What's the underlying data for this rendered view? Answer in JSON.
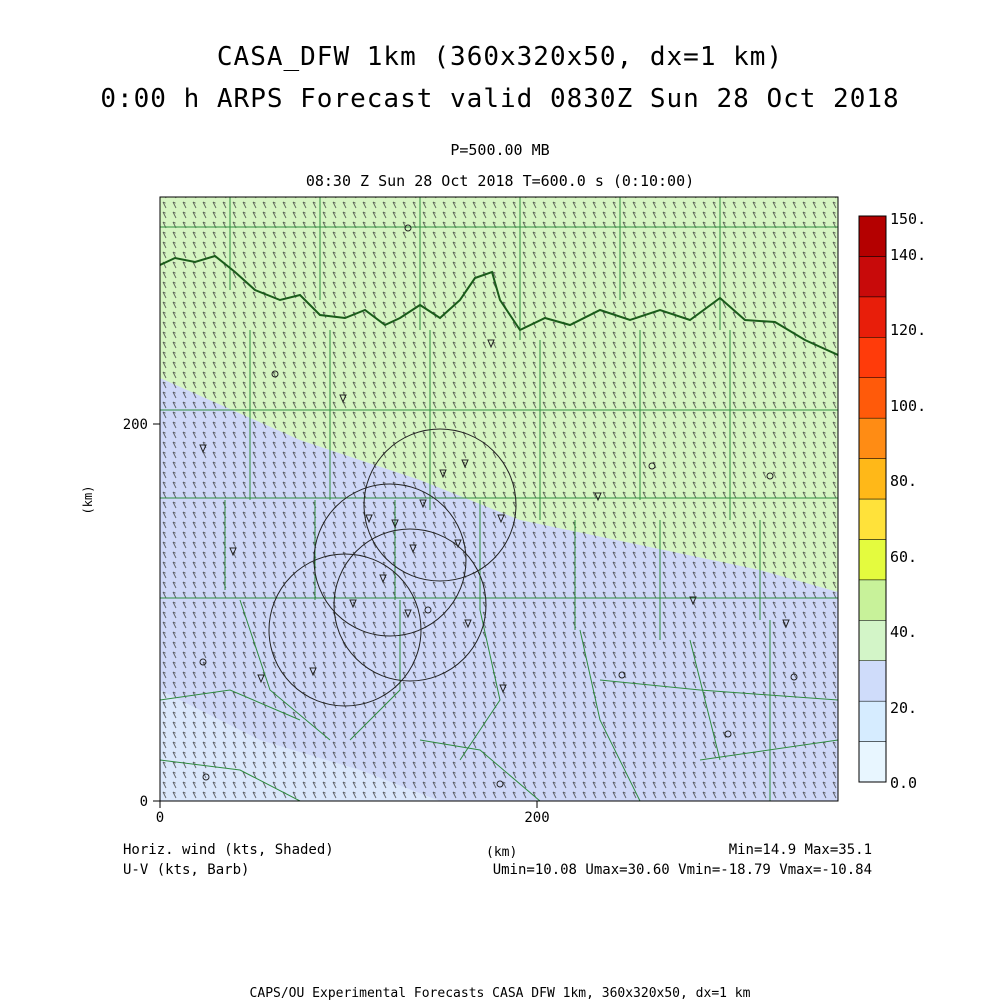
{
  "header": {
    "title_line1": "CASA_DFW 1km (360x320x50, dx=1 km)",
    "title_line2": "0:00 h ARPS Forecast valid 0830Z Sun 28 Oct 2018",
    "level": "P=500.00 MB",
    "time_line": "08:30 Z Sun 28 Oct 2018    T=600.0 s (0:10:00)"
  },
  "axes": {
    "x_ticks": [
      "0",
      "200"
    ],
    "y_ticks": [
      "0",
      "200"
    ],
    "x_label": "(km)",
    "y_label": "(km)"
  },
  "colorbar": {
    "labels": [
      "0.0",
      "20.",
      "40.",
      "60.",
      "80.",
      "100.",
      "120.",
      "140.",
      "150."
    ],
    "colors": [
      "#e8f6ff",
      "#d6ecff",
      "#cfdcfa",
      "#d3f5c8",
      "#c8f29a",
      "#e4fb3e",
      "#ffe23a",
      "#ffb818",
      "#ff8c14",
      "#ff5a0a",
      "#ff3b0a",
      "#e81e0a",
      "#c80a0a",
      "#b40000"
    ]
  },
  "footer": {
    "left_line1": "Horiz. wind (kts, Shaded)",
    "left_line2": "U-V (kts, Barb)",
    "center_label": "(km)",
    "right_line1": "Min=14.9  Max=35.1",
    "right_line2": "Umin=10.08 Umax=30.60 Vmin=-18.79 Vmax=-10.84",
    "credit": "CAPS/OU Experimental Forecasts  CASA DFW 1km, 360x320x50, dx=1 km"
  },
  "map": {
    "field_colors": {
      "blue_region": "#cfd8f8",
      "green_region": "#d6f5c2",
      "light_region": "#dbe8fb"
    },
    "border_color": "#2e8b3e",
    "river_color": "#1a5c1a"
  }
}
